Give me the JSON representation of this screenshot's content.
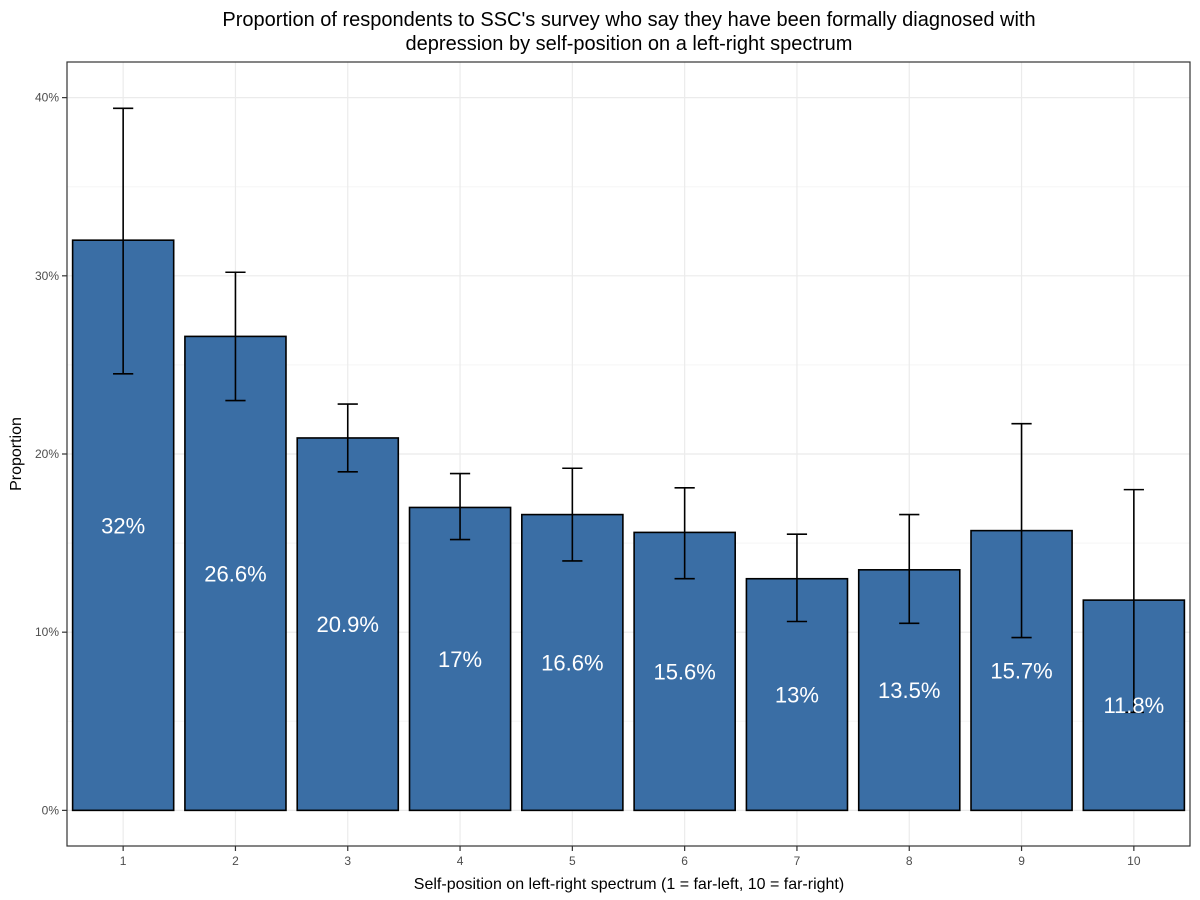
{
  "chart_data": {
    "type": "bar",
    "title_line1": "Proportion of respondents to SSC's survey who say they have been formally diagnosed with",
    "title_line2": "depression by self-position on a left-right spectrum",
    "xlabel": "Self-position on left-right spectrum (1 = far-left, 10 = far-right)",
    "ylabel": "Proportion",
    "categories": [
      "1",
      "2",
      "3",
      "4",
      "5",
      "6",
      "7",
      "8",
      "9",
      "10"
    ],
    "values": [
      0.32,
      0.266,
      0.209,
      0.17,
      0.166,
      0.156,
      0.13,
      0.135,
      0.157,
      0.118
    ],
    "data_labels": [
      "32%",
      "26.6%",
      "20.9%",
      "17%",
      "16.6%",
      "15.6%",
      "13%",
      "13.5%",
      "15.7%",
      "11.8%"
    ],
    "error_low": [
      0.245,
      0.23,
      0.19,
      0.152,
      0.14,
      0.13,
      0.106,
      0.105,
      0.097,
      0.055
    ],
    "error_high": [
      0.394,
      0.302,
      0.228,
      0.189,
      0.192,
      0.181,
      0.155,
      0.166,
      0.217,
      0.18
    ],
    "ylim": [
      -0.02,
      0.42
    ],
    "y_ticks": [
      0,
      0.1,
      0.2,
      0.3,
      0.4
    ],
    "y_tick_labels": [
      "0%",
      "10%",
      "20%",
      "30%",
      "40%"
    ],
    "grid": true,
    "legend": "none",
    "colors": {
      "bar_fill": "#3a6ea5",
      "bar_outline": "#000000",
      "error_bar": "#000000",
      "grid_major": "#ebebeb",
      "grid_minor": "#f5f5f5",
      "panel_border": "#333333",
      "data_label": "#ffffff"
    }
  }
}
